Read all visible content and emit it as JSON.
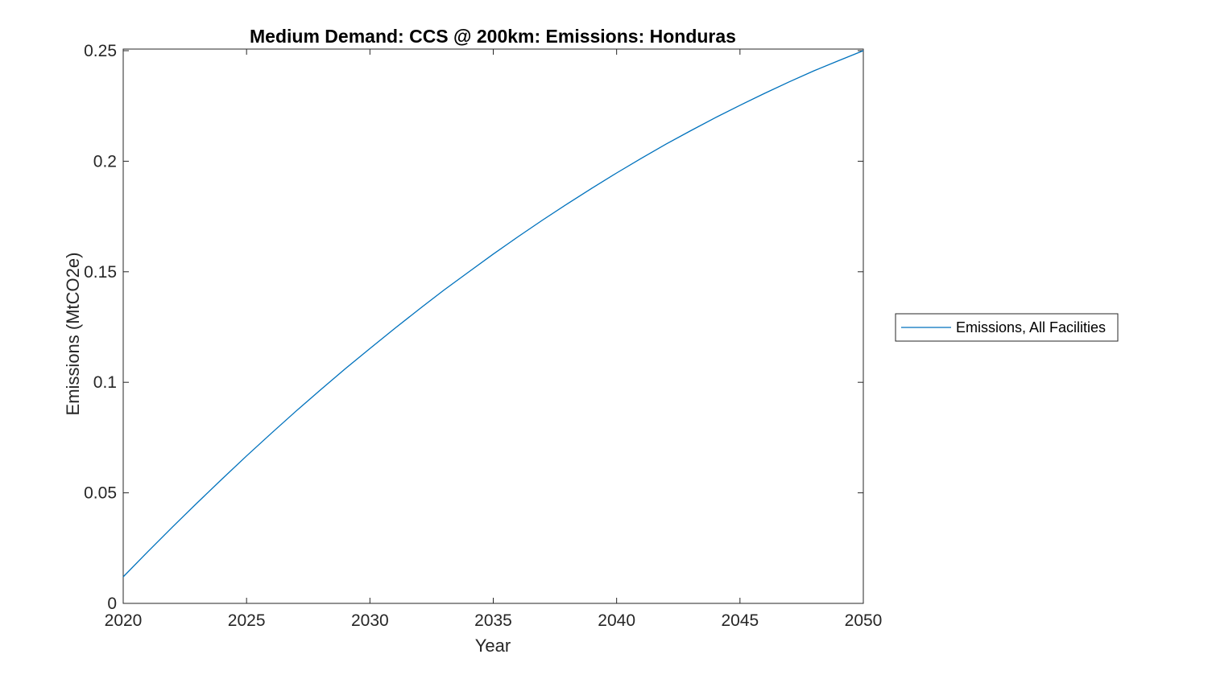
{
  "window": {
    "background": "#ffffff"
  },
  "colors": {
    "line": "#0072BD",
    "axis": "#262626",
    "title": "#000000",
    "legend_border": "#262626",
    "background": "#ffffff"
  },
  "chart_data": {
    "type": "line",
    "title": "Medium Demand: CCS @ 200km: Emissions: Honduras",
    "xlabel": "Year",
    "ylabel": "Emissions (MtCO2e)",
    "xlim": [
      2020,
      2050
    ],
    "ylim": [
      0,
      0.25
    ],
    "xticks": [
      2020,
      2025,
      2030,
      2035,
      2040,
      2045,
      2050
    ],
    "xtick_labels": [
      "2020",
      "2025",
      "2030",
      "2035",
      "2040",
      "2045",
      "2050"
    ],
    "yticks": [
      0,
      0.05,
      0.1,
      0.15,
      0.2,
      0.25
    ],
    "ytick_labels": [
      "0",
      "0.05",
      "0.1",
      "0.15",
      "0.2",
      "0.25"
    ],
    "grid": false,
    "box": true,
    "tick_direction": "in",
    "legend": {
      "position": "right-outside",
      "border": true,
      "entries": [
        {
          "label": "Emissions, All Facilities",
          "color": "#0072BD",
          "style": "solid-line"
        }
      ]
    },
    "series": [
      {
        "name": "Emissions, All Facilities",
        "color": "#0072BD",
        "x": [
          2020,
          2021,
          2022,
          2023,
          2024,
          2025,
          2026,
          2027,
          2028,
          2029,
          2030,
          2031,
          2032,
          2033,
          2034,
          2035,
          2036,
          2037,
          2038,
          2039,
          2040,
          2041,
          2042,
          2043,
          2044,
          2045,
          2046,
          2047,
          2048,
          2049,
          2050
        ],
        "y": [
          0.012,
          0.0234,
          0.0346,
          0.0455,
          0.0562,
          0.0667,
          0.0769,
          0.0869,
          0.0966,
          0.1061,
          0.1153,
          0.1243,
          0.1331,
          0.1417,
          0.1499,
          0.158,
          0.1658,
          0.1734,
          0.1807,
          0.1878,
          0.1947,
          0.2013,
          0.2077,
          0.2138,
          0.2197,
          0.2253,
          0.2307,
          0.2359,
          0.2409,
          0.2455,
          0.25
        ]
      }
    ]
  }
}
